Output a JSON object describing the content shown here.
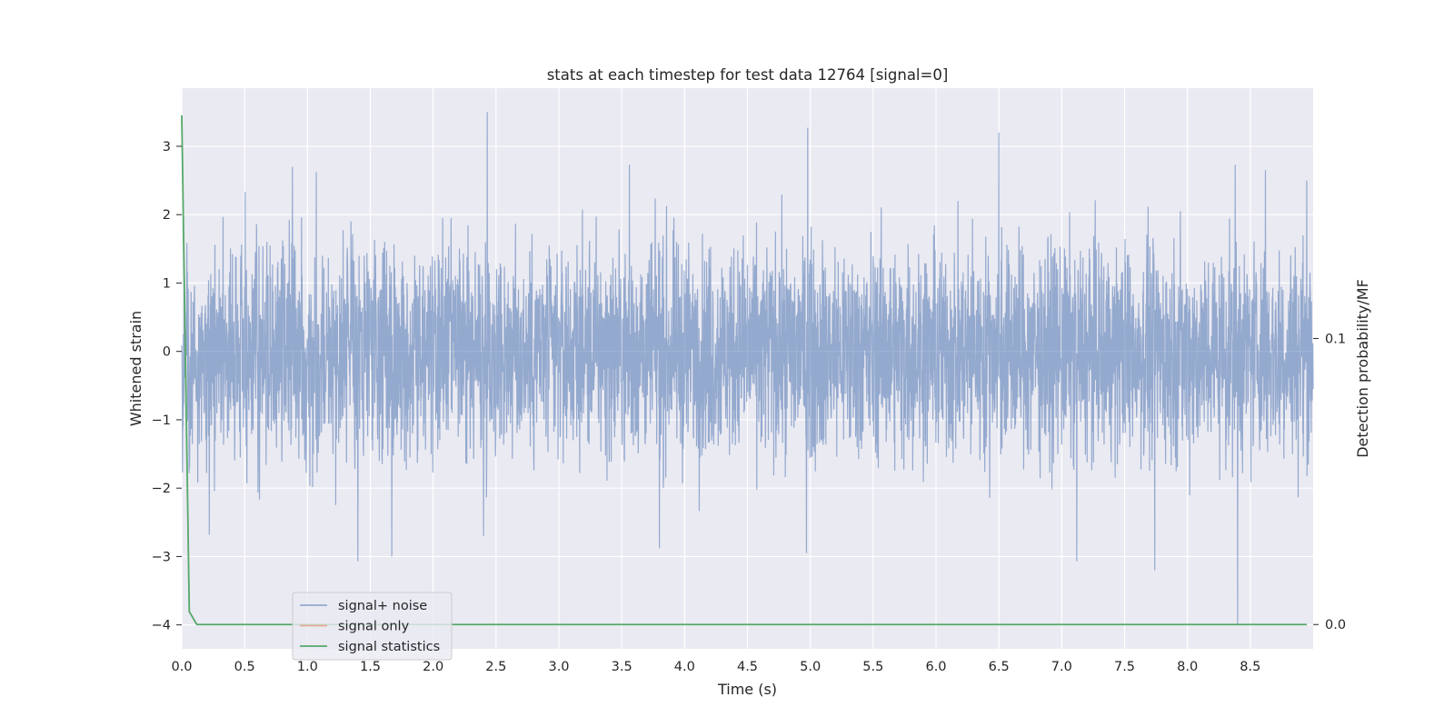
{
  "chart_data": {
    "type": "line",
    "title": "stats at each timestep for test data 12764 [signal=0]",
    "xlabel": "Time (s)",
    "ylabel": "Whitened strain",
    "ylabel_right": "Detection probability/MF",
    "xlim": [
      0.0,
      9.0
    ],
    "ylim": [
      -4.35,
      3.85
    ],
    "ylim_right": [
      -0.0085,
      0.1875
    ],
    "x_ticks": [
      0.0,
      0.5,
      1.0,
      1.5,
      2.0,
      2.5,
      3.0,
      3.5,
      4.0,
      4.5,
      5.0,
      5.5,
      6.0,
      6.5,
      7.0,
      7.5,
      8.0,
      8.5
    ],
    "x_tick_labels": [
      "0.0",
      "0.5",
      "1.0",
      "1.5",
      "2.0",
      "2.5",
      "3.0",
      "3.5",
      "4.0",
      "4.5",
      "5.0",
      "5.5",
      "6.0",
      "6.5",
      "7.0",
      "7.5",
      "8.0",
      "8.5"
    ],
    "y_ticks": [
      -4,
      -3,
      -2,
      -1,
      0,
      1,
      2,
      3
    ],
    "y_tick_labels": [
      "−4",
      "−3",
      "−2",
      "−1",
      "0",
      "1",
      "2",
      "3"
    ],
    "y_ticks_right": [
      0.0,
      0.1
    ],
    "y_tick_labels_right": [
      "0.0",
      "0.1"
    ],
    "grid": true,
    "legend_position": "lower-left",
    "series": [
      {
        "name": "signal+ noise",
        "axis": "left",
        "color": "#4c72b0",
        "kind": "dense-noise",
        "x_range": [
          0.0,
          9.0
        ],
        "envelope": [
          -1.5,
          1.5
        ],
        "peaks": [
          {
            "x": 2.43,
            "y": 3.5
          },
          {
            "x": 4.98,
            "y": 3.27
          },
          {
            "x": 6.5,
            "y": 3.2
          },
          {
            "x": 0.88,
            "y": 2.7
          },
          {
            "x": 1.07,
            "y": 2.62
          },
          {
            "x": 3.56,
            "y": 2.73
          },
          {
            "x": 8.38,
            "y": 2.73
          },
          {
            "x": 8.62,
            "y": 2.65
          },
          {
            "x": 8.95,
            "y": 2.5
          },
          {
            "x": 1.4,
            "y": -3.07
          },
          {
            "x": 1.67,
            "y": -3.0
          },
          {
            "x": 7.12,
            "y": -3.07
          },
          {
            "x": 7.74,
            "y": -3.2
          },
          {
            "x": 8.4,
            "y": -4.0
          },
          {
            "x": 4.97,
            "y": -2.95
          },
          {
            "x": 0.22,
            "y": -2.68
          },
          {
            "x": 3.8,
            "y": -2.88
          },
          {
            "x": 2.4,
            "y": -2.7
          }
        ]
      },
      {
        "name": "signal only",
        "axis": "left",
        "color": "#dd8452",
        "x": [],
        "y": []
      },
      {
        "name": "signal statistics",
        "axis": "right",
        "color": "#55a868",
        "x": [
          0.0,
          0.06,
          0.12,
          0.25,
          0.5,
          1.0,
          2.0,
          4.0,
          6.0,
          8.0,
          8.95
        ],
        "y": [
          0.178,
          0.0045,
          0.0,
          0.0,
          0.0,
          0.0,
          0.0,
          0.0,
          0.0,
          0.0,
          0.0
        ]
      }
    ]
  }
}
